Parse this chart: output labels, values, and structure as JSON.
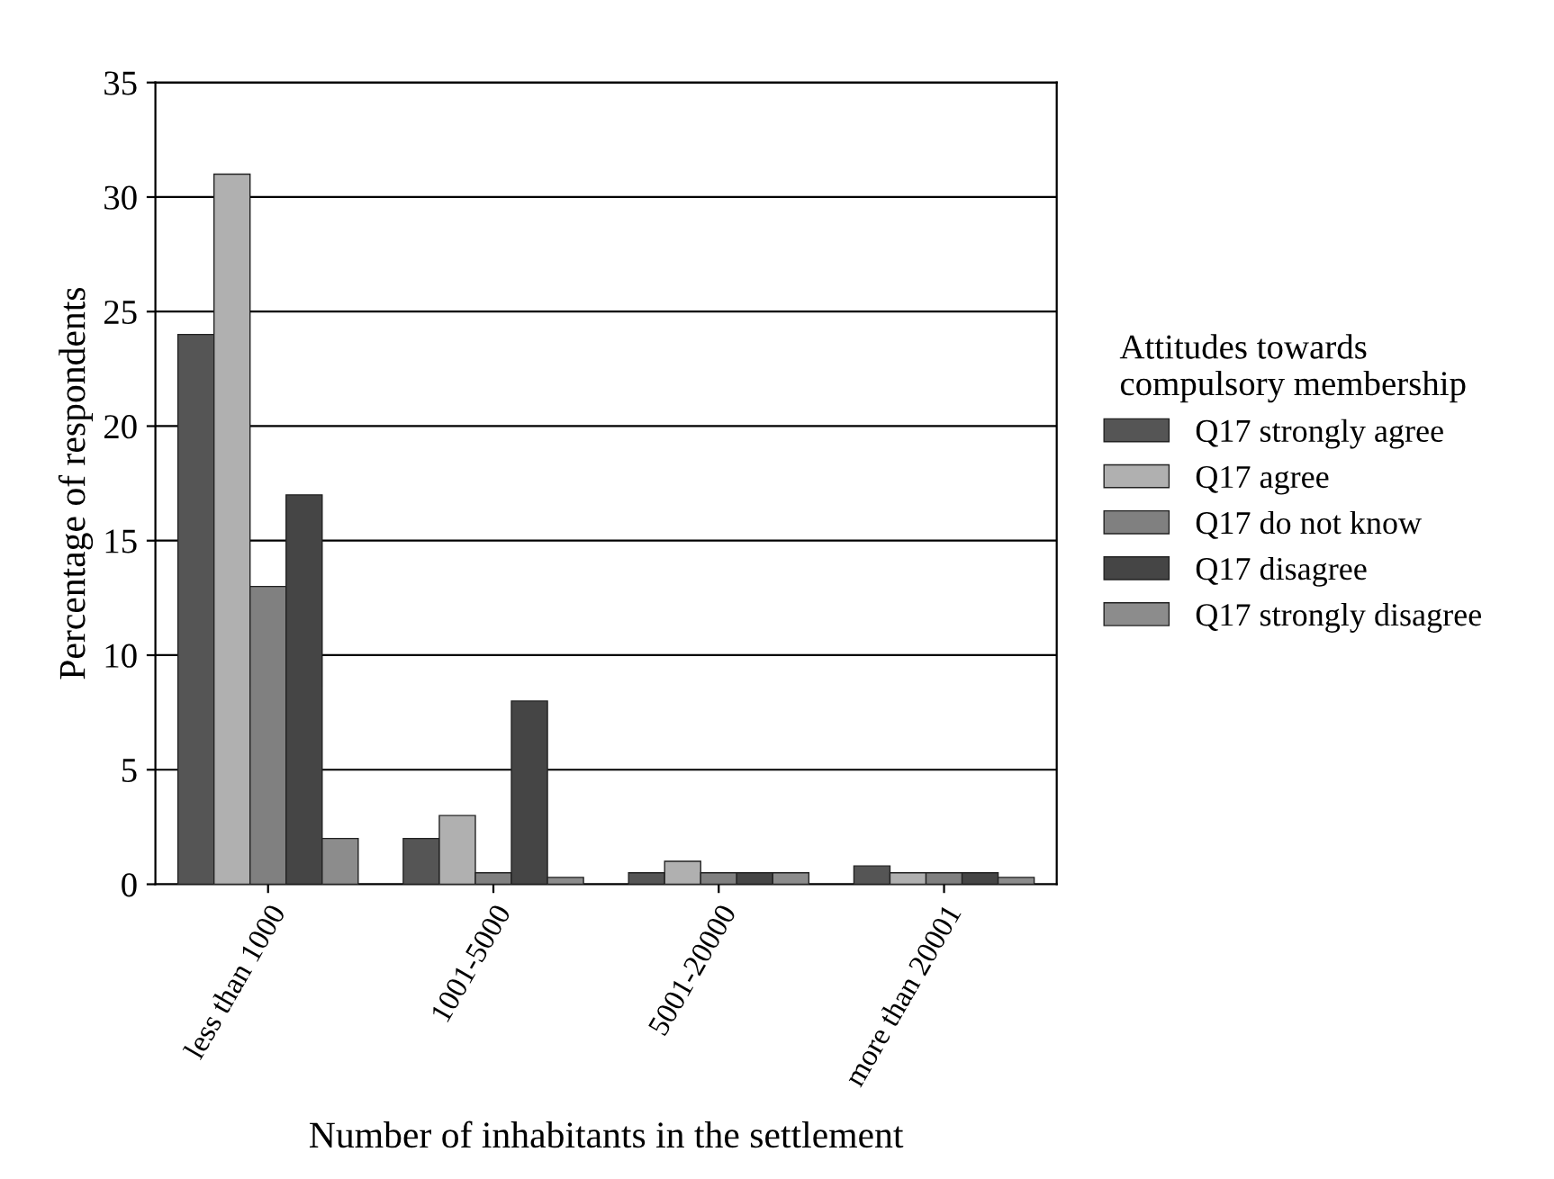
{
  "chart_data": {
    "type": "bar",
    "xlabel": "Number of inhabitants in the settlement",
    "ylabel": "Percentage of respondents",
    "legend_title": "Attitudes towards\ncompulsory membership",
    "categories": [
      "less than 1000",
      "1001-5000",
      "5001-20000",
      "more than 20001"
    ],
    "series": [
      {
        "name": "Q17 strongly agree",
        "color": "#555555",
        "values": [
          24,
          2,
          0.5,
          0.8
        ]
      },
      {
        "name": "Q17 agree",
        "color": "#b0b0b0",
        "values": [
          31,
          3,
          1,
          0.5
        ]
      },
      {
        "name": "Q17 do not know",
        "color": "#808080",
        "values": [
          13,
          0.5,
          0.5,
          0.5
        ]
      },
      {
        "name": "Q17 disagree",
        "color": "#454545",
        "values": [
          17,
          8,
          0.5,
          0.5
        ]
      },
      {
        "name": "Q17 strongly disagree",
        "color": "#8c8c8c",
        "values": [
          2,
          0.3,
          0.5,
          0.3
        ]
      }
    ],
    "ylim": [
      0,
      35
    ],
    "yticks": [
      0,
      5,
      10,
      15,
      20,
      25,
      30,
      35
    ],
    "grid": "y",
    "legend": "right"
  }
}
